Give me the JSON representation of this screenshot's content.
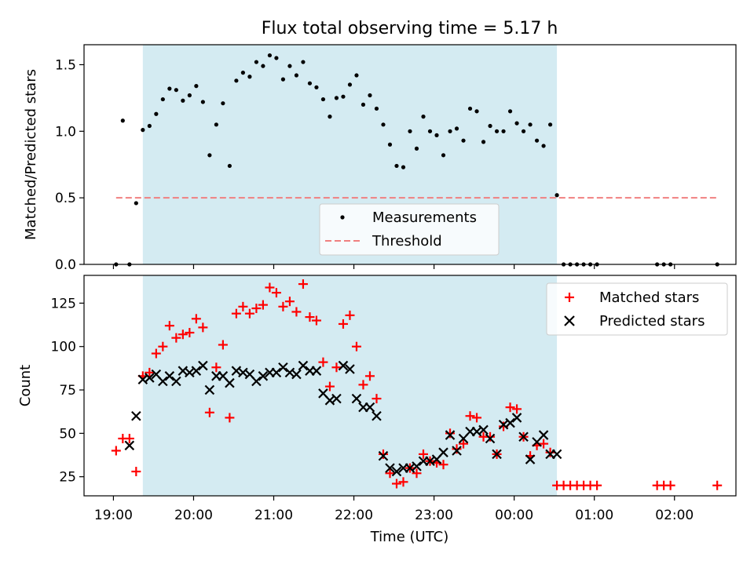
{
  "chart_data": [
    {
      "type": "scatter",
      "title": "Flux total observing time = 5.17 h",
      "ylabel": "Matched/Predicted stars",
      "xlabel": "",
      "xlim": [
        "18:38",
        "02:46"
      ],
      "ylim": [
        0,
        1.65
      ],
      "yticks": [
        "0.0",
        "0.5",
        "1.0",
        "1.5"
      ],
      "shaded_interval": {
        "start": "19:22",
        "end": "00:32",
        "color": "#d4ebf2"
      },
      "legend": {
        "position": "lower-center",
        "entries": [
          "Measurements",
          "Threshold"
        ]
      },
      "series": [
        {
          "name": "Measurements",
          "marker": "dot",
          "color": "#000000",
          "points": [
            [
              "19:02",
              0.0
            ],
            [
              "19:07",
              1.08
            ],
            [
              "19:12",
              0.0
            ],
            [
              "19:17",
              0.46
            ],
            [
              "19:22",
              1.01
            ],
            [
              "19:27",
              1.04
            ],
            [
              "19:32",
              1.13
            ],
            [
              "19:37",
              1.24
            ],
            [
              "19:42",
              1.32
            ],
            [
              "19:47",
              1.31
            ],
            [
              "19:52",
              1.23
            ],
            [
              "19:57",
              1.27
            ],
            [
              "20:02",
              1.34
            ],
            [
              "20:07",
              1.22
            ],
            [
              "20:12",
              0.82
            ],
            [
              "20:17",
              1.05
            ],
            [
              "20:22",
              1.21
            ],
            [
              "20:27",
              0.74
            ],
            [
              "20:32",
              1.38
            ],
            [
              "20:37",
              1.44
            ],
            [
              "20:42",
              1.41
            ],
            [
              "20:47",
              1.52
            ],
            [
              "20:52",
              1.49
            ],
            [
              "20:57",
              1.57
            ],
            [
              "21:02",
              1.55
            ],
            [
              "21:07",
              1.39
            ],
            [
              "21:12",
              1.49
            ],
            [
              "21:17",
              1.42
            ],
            [
              "21:22",
              1.52
            ],
            [
              "21:27",
              1.36
            ],
            [
              "21:32",
              1.33
            ],
            [
              "21:37",
              1.24
            ],
            [
              "21:42",
              1.11
            ],
            [
              "21:47",
              1.25
            ],
            [
              "21:52",
              1.26
            ],
            [
              "21:57",
              1.35
            ],
            [
              "22:02",
              1.42
            ],
            [
              "22:07",
              1.2
            ],
            [
              "22:12",
              1.27
            ],
            [
              "22:17",
              1.17
            ],
            [
              "22:22",
              1.05
            ],
            [
              "22:27",
              0.9
            ],
            [
              "22:32",
              0.74
            ],
            [
              "22:37",
              0.73
            ],
            [
              "22:42",
              1.0
            ],
            [
              "22:47",
              0.87
            ],
            [
              "22:52",
              1.11
            ],
            [
              "22:57",
              1.0
            ],
            [
              "23:02",
              0.97
            ],
            [
              "23:07",
              0.82
            ],
            [
              "23:12",
              1.0
            ],
            [
              "23:17",
              1.02
            ],
            [
              "23:22",
              0.93
            ],
            [
              "23:27",
              1.17
            ],
            [
              "23:32",
              1.15
            ],
            [
              "23:37",
              0.92
            ],
            [
              "23:42",
              1.04
            ],
            [
              "23:47",
              1.0
            ],
            [
              "23:52",
              1.0
            ],
            [
              "23:57",
              1.15
            ],
            [
              "00:02",
              1.06
            ],
            [
              "00:07",
              1.0
            ],
            [
              "00:12",
              1.05
            ],
            [
              "00:17",
              0.93
            ],
            [
              "00:22",
              0.89
            ],
            [
              "00:27",
              1.05
            ],
            [
              "00:32",
              0.52
            ],
            [
              "00:37",
              0.0
            ],
            [
              "00:42",
              0.0
            ],
            [
              "00:47",
              0.0
            ],
            [
              "00:52",
              0.0
            ],
            [
              "00:57",
              0.0
            ],
            [
              "01:02",
              0.0
            ],
            [
              "01:47",
              0.0
            ],
            [
              "01:52",
              0.0
            ],
            [
              "01:57",
              0.0
            ],
            [
              "02:32",
              0.0
            ]
          ]
        },
        {
          "name": "Threshold",
          "type": "line",
          "style": "dashed",
          "color": "#f08080",
          "points": [
            [
              "19:02",
              0.5
            ],
            [
              "02:32",
              0.5
            ]
          ]
        }
      ]
    },
    {
      "type": "scatter",
      "title": "",
      "xlabel": "Time (UTC)",
      "ylabel": "Count",
      "xlim": [
        "18:38",
        "02:46"
      ],
      "ylim": [
        14,
        141
      ],
      "xticks": [
        "19:00",
        "20:00",
        "21:00",
        "22:00",
        "23:00",
        "00:00",
        "01:00",
        "02:00"
      ],
      "yticks": [
        "25",
        "50",
        "75",
        "100",
        "125"
      ],
      "shaded_interval": {
        "start": "19:22",
        "end": "00:32",
        "color": "#d4ebf2"
      },
      "legend": {
        "position": "top-right",
        "entries": [
          "Matched stars",
          "Predicted stars"
        ]
      },
      "series": [
        {
          "name": "Matched stars",
          "marker": "plus",
          "color": "#ff0000",
          "points": [
            [
              "19:02",
              40
            ],
            [
              "19:07",
              47
            ],
            [
              "19:12",
              47
            ],
            [
              "19:17",
              28
            ],
            [
              "19:22",
              83
            ],
            [
              "19:27",
              85
            ],
            [
              "19:32",
              96
            ],
            [
              "19:37",
              100
            ],
            [
              "19:42",
              112
            ],
            [
              "19:47",
              105
            ],
            [
              "19:52",
              107
            ],
            [
              "19:57",
              108
            ],
            [
              "20:02",
              116
            ],
            [
              "20:07",
              111
            ],
            [
              "20:12",
              62
            ],
            [
              "20:17",
              88
            ],
            [
              "20:22",
              101
            ],
            [
              "20:27",
              59
            ],
            [
              "20:32",
              119
            ],
            [
              "20:37",
              123
            ],
            [
              "20:42",
              119
            ],
            [
              "20:47",
              122
            ],
            [
              "20:52",
              124
            ],
            [
              "20:57",
              134
            ],
            [
              "21:02",
              131
            ],
            [
              "21:07",
              123
            ],
            [
              "21:12",
              126
            ],
            [
              "21:17",
              120
            ],
            [
              "21:22",
              136
            ],
            [
              "21:27",
              117
            ],
            [
              "21:32",
              115
            ],
            [
              "21:37",
              91
            ],
            [
              "21:42",
              77
            ],
            [
              "21:47",
              88
            ],
            [
              "21:52",
              113
            ],
            [
              "21:57",
              118
            ],
            [
              "22:02",
              100
            ],
            [
              "22:07",
              78
            ],
            [
              "22:12",
              83
            ],
            [
              "22:17",
              70
            ],
            [
              "22:22",
              38
            ],
            [
              "22:27",
              27
            ],
            [
              "22:32",
              21
            ],
            [
              "22:37",
              22
            ],
            [
              "22:42",
              30
            ],
            [
              "22:47",
              27
            ],
            [
              "22:52",
              38
            ],
            [
              "22:57",
              34
            ],
            [
              "23:02",
              33
            ],
            [
              "23:07",
              32
            ],
            [
              "23:12",
              50
            ],
            [
              "23:17",
              41
            ],
            [
              "23:22",
              44
            ],
            [
              "23:27",
              60
            ],
            [
              "23:32",
              59
            ],
            [
              "23:37",
              48
            ],
            [
              "23:42",
              48
            ],
            [
              "23:47",
              38
            ],
            [
              "23:52",
              54
            ],
            [
              "23:57",
              65
            ],
            [
              "00:02",
              64
            ],
            [
              "00:07",
              48
            ],
            [
              "00:12",
              37
            ],
            [
              "00:17",
              43
            ],
            [
              "00:22",
              44
            ],
            [
              "00:27",
              39
            ],
            [
              "00:32",
              20
            ],
            [
              "00:37",
              20
            ],
            [
              "00:42",
              20
            ],
            [
              "00:47",
              20
            ],
            [
              "00:52",
              20
            ],
            [
              "00:57",
              20
            ],
            [
              "01:02",
              20
            ],
            [
              "01:47",
              20
            ],
            [
              "01:52",
              20
            ],
            [
              "01:57",
              20
            ],
            [
              "02:32",
              20
            ]
          ]
        },
        {
          "name": "Predicted stars",
          "marker": "x",
          "color": "#000000",
          "points": [
            [
              "19:12",
              43
            ],
            [
              "19:17",
              60
            ],
            [
              "19:22",
              81
            ],
            [
              "19:27",
              82
            ],
            [
              "19:32",
              84
            ],
            [
              "19:37",
              80
            ],
            [
              "19:42",
              83
            ],
            [
              "19:47",
              80
            ],
            [
              "19:52",
              86
            ],
            [
              "19:57",
              85
            ],
            [
              "20:02",
              86
            ],
            [
              "20:07",
              89
            ],
            [
              "20:12",
              75
            ],
            [
              "20:17",
              83
            ],
            [
              "20:22",
              83
            ],
            [
              "20:27",
              79
            ],
            [
              "20:32",
              86
            ],
            [
              "20:37",
              85
            ],
            [
              "20:42",
              84
            ],
            [
              "20:47",
              80
            ],
            [
              "20:52",
              83
            ],
            [
              "20:57",
              85
            ],
            [
              "21:02",
              85
            ],
            [
              "21:07",
              88
            ],
            [
              "21:12",
              85
            ],
            [
              "21:17",
              84
            ],
            [
              "21:22",
              89
            ],
            [
              "21:27",
              86
            ],
            [
              "21:32",
              86
            ],
            [
              "21:37",
              73
            ],
            [
              "21:42",
              69
            ],
            [
              "21:47",
              70
            ],
            [
              "21:52",
              89
            ],
            [
              "21:57",
              87
            ],
            [
              "22:02",
              70
            ],
            [
              "22:07",
              65
            ],
            [
              "22:12",
              65
            ],
            [
              "22:17",
              60
            ],
            [
              "22:22",
              37
            ],
            [
              "22:27",
              30
            ],
            [
              "22:32",
              28
            ],
            [
              "22:37",
              30
            ],
            [
              "22:42",
              30
            ],
            [
              "22:47",
              31
            ],
            [
              "22:52",
              34
            ],
            [
              "22:57",
              34
            ],
            [
              "23:02",
              35
            ],
            [
              "23:07",
              39
            ],
            [
              "23:12",
              49
            ],
            [
              "23:17",
              40
            ],
            [
              "23:22",
              47
            ],
            [
              "23:27",
              51
            ],
            [
              "23:32",
              51
            ],
            [
              "23:37",
              52
            ],
            [
              "23:42",
              47
            ],
            [
              "23:47",
              38
            ],
            [
              "23:52",
              55
            ],
            [
              "23:57",
              56
            ],
            [
              "00:02",
              59
            ],
            [
              "00:07",
              48
            ],
            [
              "00:12",
              35
            ],
            [
              "00:17",
              45
            ],
            [
              "00:22",
              49
            ],
            [
              "00:27",
              38
            ],
            [
              "00:32",
              38
            ]
          ]
        }
      ]
    }
  ]
}
